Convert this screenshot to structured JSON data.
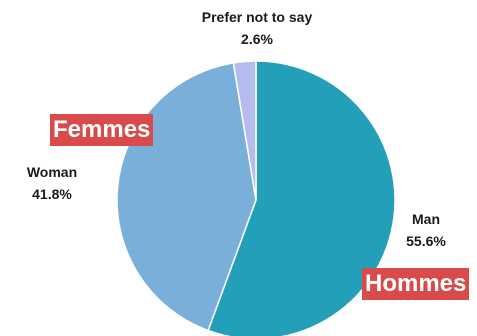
{
  "chart_data": {
    "type": "pie",
    "slices": [
      {
        "label": "Man",
        "value": 55.6,
        "display": "55.6%",
        "color": "#239fba"
      },
      {
        "label": "Woman",
        "value": 41.8,
        "display": "41.8%",
        "color": "#7aafda"
      },
      {
        "label": "Prefer not to say",
        "value": 2.6,
        "display": "2.6%",
        "color": "#b4bcee"
      }
    ],
    "start": "top",
    "direction": "clockwise",
    "legend": "none"
  },
  "overlays": {
    "women": {
      "text": "Femmes",
      "background": "#d94a4a"
    },
    "men": {
      "text": "Hommes",
      "background": "#d94a4a"
    }
  }
}
